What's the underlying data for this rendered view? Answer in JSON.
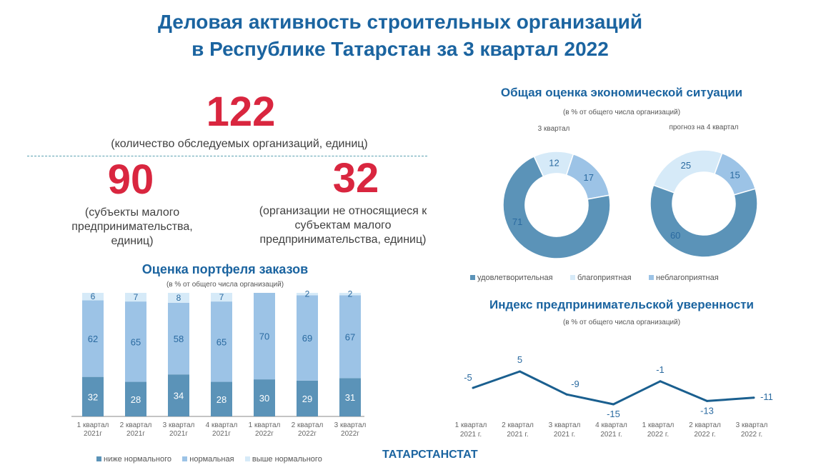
{
  "title": {
    "line1": "Деловая активность строительных организаций",
    "line2": "в Республике Татарстан за 3 квартал 2022"
  },
  "stats": {
    "total": {
      "value": "122",
      "caption": "(количество обследуемых организаций, единиц)"
    },
    "small": {
      "value": "90",
      "caption": "(субъекты  малого предпринимательства, единиц)"
    },
    "other": {
      "value": "32",
      "caption": "(организации  не относящиеся к субъектам малого предпринимательства, единиц)"
    }
  },
  "footer": {
    "brand": "ТАТАРСТАНСТАТ"
  },
  "colors": {
    "dark": "#5b93b8",
    "mid": "#9cc3e6",
    "light": "#d6eaf8",
    "line": "#1a5f8f",
    "title": "#1b64a0",
    "accent": "#d9263f"
  },
  "chart_data": [
    {
      "type": "bar",
      "stacked": true,
      "title": "Оценка портфеля заказов",
      "subtitle": "(в % от общего числа организаций)",
      "categories": [
        "1 квартал 2021г",
        "2 квартал 2021г",
        "3 квартал 2021г",
        "4 квартал 2021г",
        "1 квартал 2022г",
        "2 квартал 2022г",
        "3 квартал 2022г"
      ],
      "series": [
        {
          "name": "ниже нормального",
          "values": [
            32,
            28,
            34,
            28,
            30,
            29,
            31
          ]
        },
        {
          "name": "нормальная",
          "values": [
            62,
            65,
            58,
            65,
            70,
            69,
            67
          ]
        },
        {
          "name": "выше нормального",
          "values": [
            6,
            7,
            8,
            7,
            0,
            2,
            2
          ]
        }
      ],
      "ylim": [
        0,
        100
      ],
      "legend": "bottom"
    },
    {
      "type": "pie",
      "donut": true,
      "title": "Общая оценка экономической ситуации",
      "subtitle": "(в % от общего числа организаций)",
      "categories": [
        "удовлетворительная",
        "благоприятная",
        "неблагоприятная"
      ],
      "charts": [
        {
          "label": "3 квартал",
          "values": [
            71,
            12,
            17
          ]
        },
        {
          "label": "прогноз на 4 квартал",
          "values": [
            60,
            25,
            15
          ]
        }
      ],
      "legend": "bottom"
    },
    {
      "type": "line",
      "title": "Индекс предпринимательской уверенности",
      "subtitle": "(в % от общего числа организаций)",
      "categories": [
        "1 квартал 2021 г.",
        "2 квартал 2021 г.",
        "3 квартал 2021 г.",
        "4 квартал 2021 г.",
        "1 квартал 2022 г.",
        "2 квартал 2022 г.",
        "3 квартал 2022 г."
      ],
      "values": [
        -5,
        5,
        -9,
        -15,
        -1,
        -13,
        -11
      ]
    }
  ]
}
